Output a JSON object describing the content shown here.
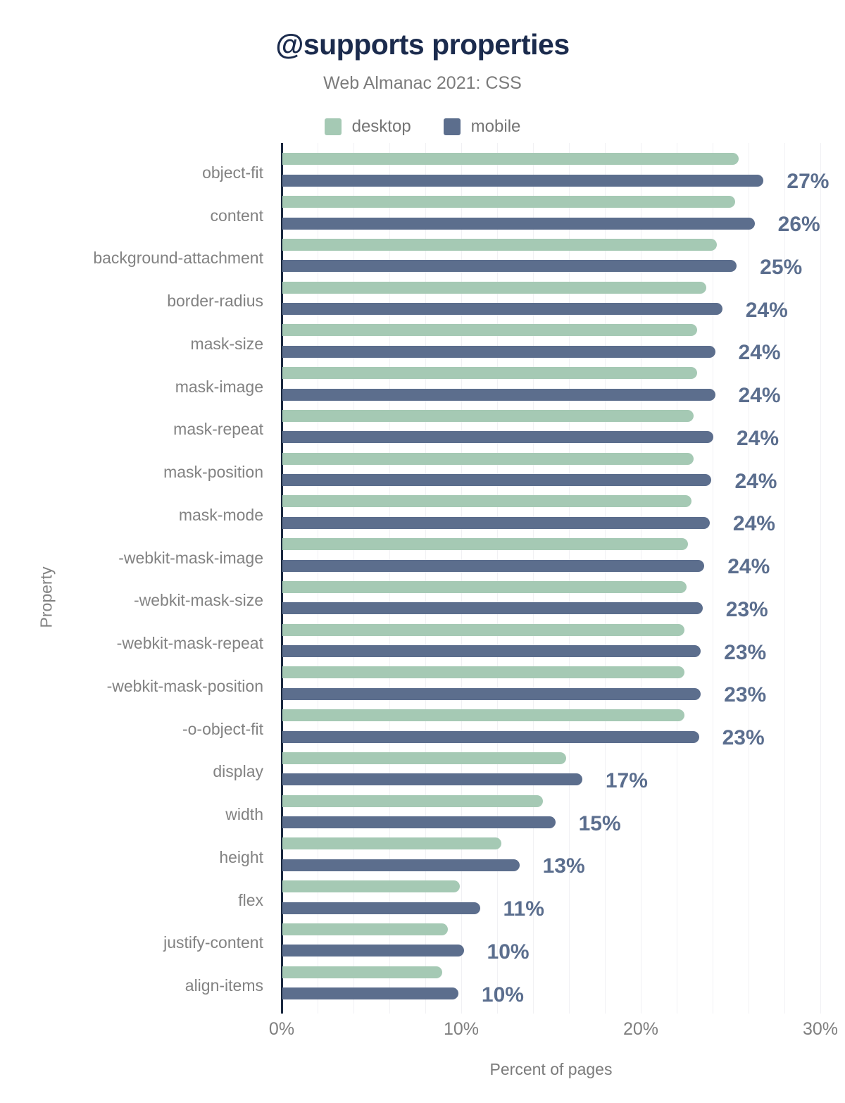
{
  "header": {
    "title": "@supports properties",
    "subtitle": "Web Almanac 2021: CSS"
  },
  "legend": {
    "items": [
      {
        "label": "desktop",
        "color": "#a5c9b4"
      },
      {
        "label": "mobile",
        "color": "#5c6e8d"
      }
    ]
  },
  "axes": {
    "x_title": "Percent of pages",
    "y_title": "Property",
    "x_ticks": [
      "0%",
      "10%",
      "20%",
      "30%"
    ]
  },
  "colors": {
    "title": "#1b2b4d",
    "subtitle": "#7b7b7b",
    "desktop_bar": "#a5c9b4",
    "mobile_bar": "#5c6e8d",
    "value_label": "#5b6e8e",
    "axis_line": "#1b2940",
    "tick_text": "#7f7f7f",
    "category_text": "#828282",
    "gridline": "#f1f1f4",
    "background": "#ffffff"
  },
  "chart_data": {
    "type": "bar",
    "orientation": "horizontal",
    "title": "@supports properties",
    "subtitle": "Web Almanac 2021: CSS",
    "xlabel": "Percent of pages",
    "ylabel": "Property",
    "xlim": [
      0,
      30
    ],
    "xtick_values": [
      0,
      10,
      20,
      30
    ],
    "xtick_labels": [
      "0%",
      "10%",
      "20%",
      "30%"
    ],
    "grid": "vertical, minor lines every 2%, on",
    "legend_position": "top-center",
    "categories": [
      "object-fit",
      "content",
      "background-attachment",
      "border-radius",
      "mask-size",
      "mask-image",
      "mask-repeat",
      "mask-position",
      "mask-mode",
      "-webkit-mask-image",
      "-webkit-mask-size",
      "-webkit-mask-repeat",
      "-webkit-mask-position",
      "-o-object-fit",
      "display",
      "width",
      "height",
      "flex",
      "justify-content",
      "align-items"
    ],
    "series": [
      {
        "name": "desktop",
        "values": [
          25.4,
          25.2,
          24.2,
          23.6,
          23.1,
          23.1,
          22.9,
          22.9,
          22.8,
          22.6,
          22.5,
          22.4,
          22.4,
          22.4,
          15.8,
          14.5,
          12.2,
          9.9,
          9.2,
          8.9
        ]
      },
      {
        "name": "mobile",
        "values": [
          26.8,
          26.3,
          25.3,
          24.5,
          24.1,
          24.1,
          24.0,
          23.9,
          23.8,
          23.5,
          23.4,
          23.3,
          23.3,
          23.2,
          16.7,
          15.2,
          13.2,
          11.0,
          10.1,
          9.8
        ]
      }
    ],
    "value_labels": [
      "27%",
      "26%",
      "25%",
      "24%",
      "24%",
      "24%",
      "24%",
      "24%",
      "24%",
      "24%",
      "23%",
      "23%",
      "23%",
      "23%",
      "17%",
      "15%",
      "13%",
      "11%",
      "10%",
      "10%"
    ],
    "value_labels_refer_to": "mobile"
  }
}
